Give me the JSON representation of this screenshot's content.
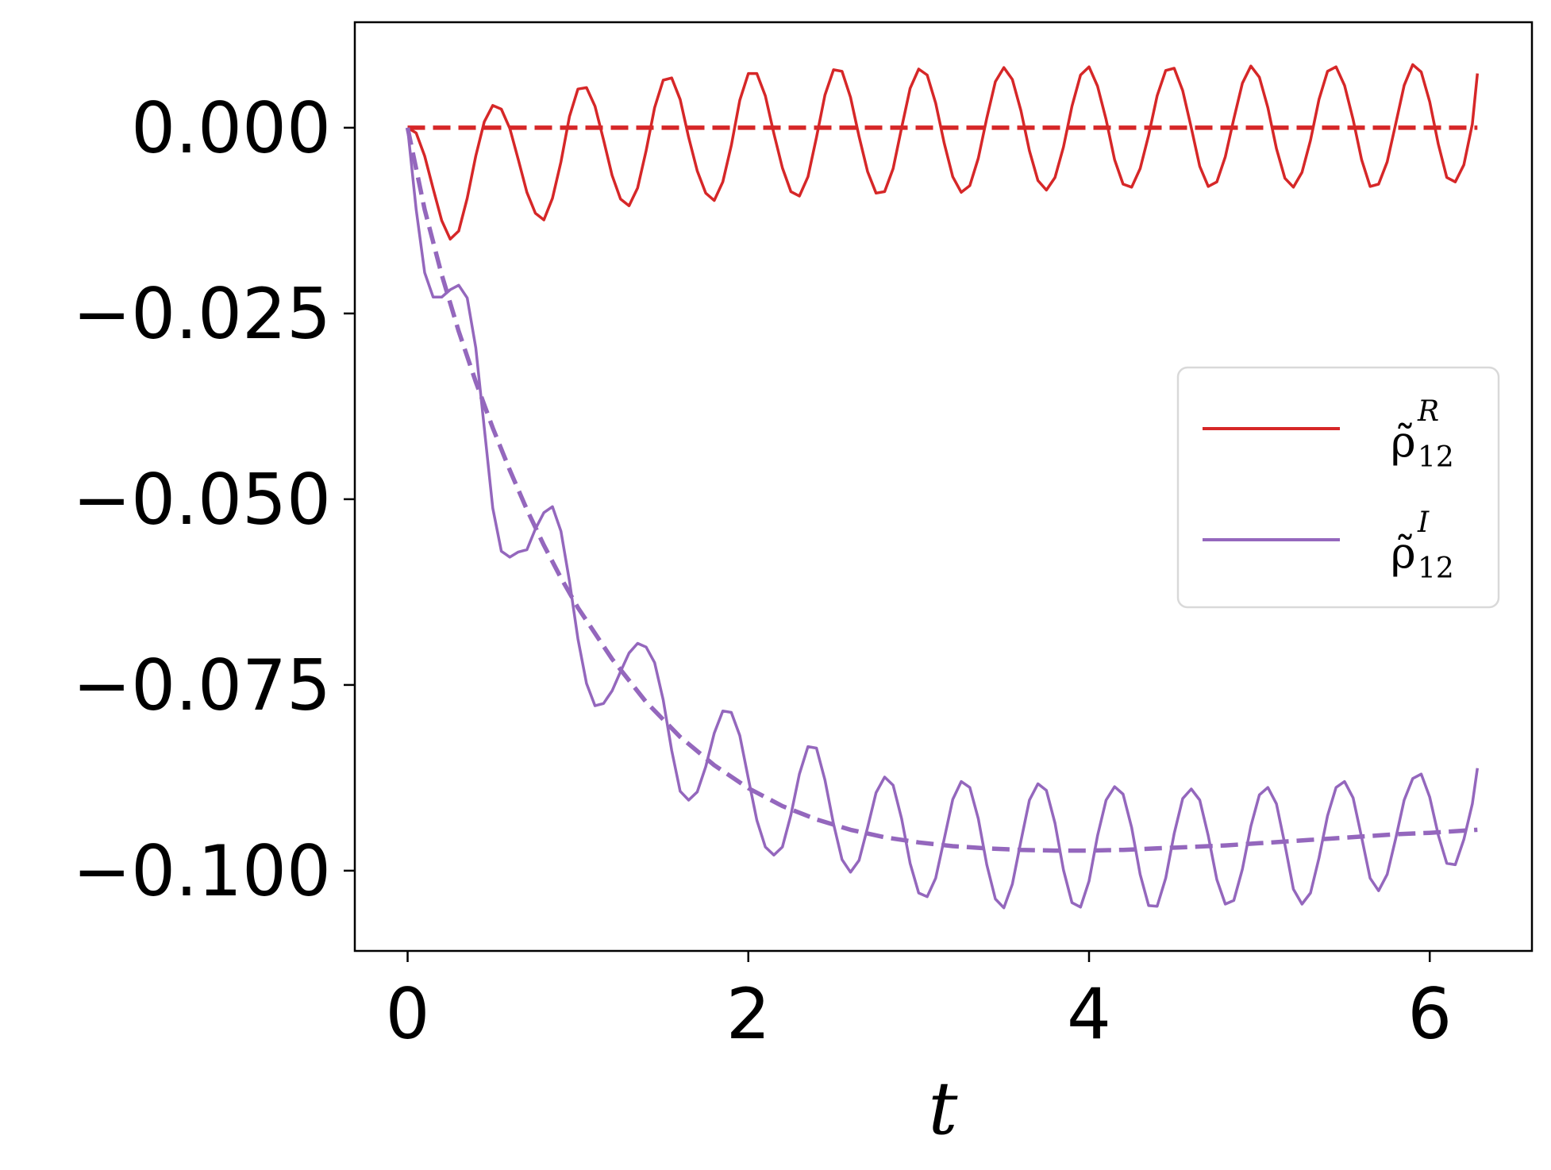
{
  "chart_data": {
    "type": "line",
    "title": "",
    "xlabel": "t",
    "ylabel": "",
    "xlim": [
      -0.31,
      6.6
    ],
    "ylim": [
      -0.1108,
      0.0142
    ],
    "xticks": [
      0,
      2,
      4,
      6
    ],
    "xtick_labels": [
      "0",
      "2",
      "4",
      "6"
    ],
    "yticks": [
      0.0,
      -0.025,
      -0.05,
      -0.075,
      -0.1
    ],
    "ytick_labels": [
      "0.000",
      "−0.025",
      "−0.050",
      "−0.075",
      "−0.100"
    ],
    "grid": false,
    "legend": {
      "placement": "center-right",
      "entries": [
        {
          "base": "ρ̃",
          "sub": "12",
          "sup": "R",
          "color": "#d62728"
        },
        {
          "base": "ρ̃",
          "sub": "12",
          "sup": "I",
          "color": "#9467bd"
        }
      ]
    },
    "series": [
      {
        "legend_index": 0,
        "style": "solid",
        "color": "#d62728",
        "x": [
          0,
          0.05,
          0.1,
          0.15,
          0.2,
          0.25,
          0.3,
          0.35,
          0.4,
          0.45,
          0.5,
          0.55,
          0.6,
          0.65,
          0.7,
          0.75,
          0.8,
          0.85,
          0.9,
          0.95,
          1.0,
          1.05,
          1.1,
          1.15,
          1.2,
          1.25,
          1.3,
          1.35,
          1.4,
          1.45,
          1.5,
          1.55,
          1.6,
          1.65,
          1.7,
          1.75,
          1.8,
          1.85,
          1.9,
          1.95,
          2.0,
          2.05,
          2.1,
          2.15,
          2.2,
          2.25,
          2.3,
          2.35,
          2.4,
          2.45,
          2.5,
          2.55,
          2.6,
          2.65,
          2.7,
          2.75,
          2.8,
          2.85,
          2.9,
          2.95,
          3.0,
          3.05,
          3.1,
          3.15,
          3.2,
          3.25,
          3.3,
          3.35,
          3.4,
          3.45,
          3.5,
          3.55,
          3.6,
          3.65,
          3.7,
          3.75,
          3.8,
          3.85,
          3.9,
          3.95,
          4.0,
          4.05,
          4.1,
          4.15,
          4.2,
          4.25,
          4.3,
          4.35,
          4.4,
          4.45,
          4.5,
          4.55,
          4.6,
          4.65,
          4.7,
          4.75,
          4.8,
          4.85,
          4.9,
          4.95,
          5.0,
          5.05,
          5.1,
          5.15,
          5.2,
          5.25,
          5.3,
          5.35,
          5.4,
          5.45,
          5.5,
          5.55,
          5.6,
          5.65,
          5.7,
          5.75,
          5.8,
          5.85,
          5.9,
          5.95,
          6.0,
          6.05,
          6.1,
          6.15,
          6.2,
          6.25,
          6.28
        ],
        "y": [
          0.0,
          -0.0007,
          -0.0038,
          -0.0082,
          -0.0125,
          -0.015,
          -0.0139,
          -0.0095,
          -0.0038,
          0.0008,
          0.003,
          0.0025,
          -0.0001,
          -0.0043,
          -0.0087,
          -0.0115,
          -0.0124,
          -0.0095,
          -0.0046,
          0.0015,
          0.0052,
          0.0054,
          0.0029,
          -0.0016,
          -0.0064,
          -0.0096,
          -0.0105,
          -0.0081,
          -0.0031,
          0.0027,
          0.0064,
          0.0067,
          0.0038,
          -0.0013,
          -0.0058,
          -0.0088,
          -0.0098,
          -0.0073,
          -0.0024,
          0.0037,
          0.0073,
          0.0073,
          0.0043,
          -0.0008,
          -0.0054,
          -0.0086,
          -0.0092,
          -0.0066,
          -0.0013,
          0.0044,
          0.0078,
          0.0076,
          0.0041,
          -0.0012,
          -0.0059,
          -0.0088,
          -0.0086,
          -0.0055,
          0.0,
          0.0053,
          0.0079,
          0.0071,
          0.0033,
          -0.0021,
          -0.0066,
          -0.0087,
          -0.0078,
          -0.0041,
          0.0013,
          0.0062,
          0.0081,
          0.0065,
          0.0023,
          -0.0031,
          -0.0071,
          -0.0084,
          -0.0067,
          -0.0026,
          0.0029,
          0.0071,
          0.0082,
          0.0056,
          0.0011,
          -0.0043,
          -0.0076,
          -0.008,
          -0.0055,
          -0.001,
          0.0043,
          0.0077,
          0.008,
          0.005,
          0.0,
          -0.0052,
          -0.0079,
          -0.0073,
          -0.0039,
          0.0012,
          0.006,
          0.0083,
          0.0068,
          0.0027,
          -0.0028,
          -0.0068,
          -0.008,
          -0.006,
          -0.0017,
          0.0038,
          0.0076,
          0.0082,
          0.0057,
          0.0011,
          -0.0043,
          -0.0079,
          -0.0076,
          -0.0046,
          0.0005,
          0.0057,
          0.0085,
          0.0075,
          0.0035,
          -0.0022,
          -0.0067,
          -0.0073,
          -0.005,
          0.0005,
          0.0073
        ]
      },
      {
        "legend_index": null,
        "style": "dashed",
        "color": "#d62728",
        "x": [
          0,
          6.28
        ],
        "y": [
          0.0,
          0.0
        ]
      },
      {
        "legend_index": 1,
        "style": "solid",
        "color": "#9467bd",
        "x": [
          0,
          0.05,
          0.1,
          0.15,
          0.2,
          0.25,
          0.3,
          0.35,
          0.4,
          0.45,
          0.5,
          0.55,
          0.6,
          0.65,
          0.7,
          0.75,
          0.8,
          0.85,
          0.9,
          0.95,
          1.0,
          1.05,
          1.1,
          1.15,
          1.2,
          1.25,
          1.3,
          1.35,
          1.4,
          1.45,
          1.5,
          1.55,
          1.6,
          1.65,
          1.7,
          1.75,
          1.8,
          1.85,
          1.9,
          1.95,
          2.0,
          2.05,
          2.1,
          2.15,
          2.2,
          2.25,
          2.3,
          2.35,
          2.4,
          2.45,
          2.5,
          2.55,
          2.6,
          2.65,
          2.7,
          2.75,
          2.8,
          2.85,
          2.9,
          2.95,
          3.0,
          3.05,
          3.1,
          3.15,
          3.2,
          3.25,
          3.3,
          3.35,
          3.4,
          3.45,
          3.5,
          3.55,
          3.6,
          3.65,
          3.7,
          3.75,
          3.8,
          3.85,
          3.9,
          3.95,
          4.0,
          4.05,
          4.1,
          4.15,
          4.2,
          4.25,
          4.3,
          4.35,
          4.4,
          4.45,
          4.5,
          4.55,
          4.6,
          4.65,
          4.7,
          4.75,
          4.8,
          4.85,
          4.9,
          4.95,
          5.0,
          5.05,
          5.1,
          5.15,
          5.2,
          5.25,
          5.3,
          5.35,
          5.4,
          5.45,
          5.5,
          5.55,
          5.6,
          5.65,
          5.7,
          5.75,
          5.8,
          5.85,
          5.9,
          5.95,
          6.0,
          6.05,
          6.1,
          6.15,
          6.2,
          6.25,
          6.28
        ],
        "y": [
          0.0,
          -0.011,
          -0.0195,
          -0.0228,
          -0.0228,
          -0.0218,
          -0.0212,
          -0.0229,
          -0.0296,
          -0.0404,
          -0.0512,
          -0.057,
          -0.0578,
          -0.0571,
          -0.0568,
          -0.054,
          -0.0518,
          -0.051,
          -0.0543,
          -0.061,
          -0.0688,
          -0.0748,
          -0.0778,
          -0.0775,
          -0.0758,
          -0.0732,
          -0.0707,
          -0.0694,
          -0.0699,
          -0.072,
          -0.077,
          -0.0838,
          -0.0893,
          -0.0905,
          -0.0894,
          -0.086,
          -0.0815,
          -0.0785,
          -0.0787,
          -0.0818,
          -0.0876,
          -0.0932,
          -0.0968,
          -0.0979,
          -0.0968,
          -0.0925,
          -0.087,
          -0.0833,
          -0.0835,
          -0.0878,
          -0.0937,
          -0.0985,
          -0.1002,
          -0.0986,
          -0.0942,
          -0.0895,
          -0.0874,
          -0.0885,
          -0.093,
          -0.099,
          -0.103,
          -0.1035,
          -0.101,
          -0.0957,
          -0.0904,
          -0.088,
          -0.0888,
          -0.093,
          -0.0992,
          -0.1038,
          -0.105,
          -0.1018,
          -0.096,
          -0.0905,
          -0.0883,
          -0.0892,
          -0.0936,
          -0.0999,
          -0.1043,
          -0.1049,
          -0.1014,
          -0.0953,
          -0.0905,
          -0.0887,
          -0.0897,
          -0.0942,
          -0.1005,
          -0.1047,
          -0.1048,
          -0.101,
          -0.095,
          -0.0903,
          -0.089,
          -0.0905,
          -0.0953,
          -0.1012,
          -0.1045,
          -0.104,
          -0.0998,
          -0.094,
          -0.0898,
          -0.0888,
          -0.091,
          -0.0965,
          -0.1025,
          -0.1045,
          -0.103,
          -0.0983,
          -0.0926,
          -0.0888,
          -0.088,
          -0.0902,
          -0.0955,
          -0.101,
          -0.1027,
          -0.1005,
          -0.0957,
          -0.0905,
          -0.0876,
          -0.087,
          -0.0901,
          -0.0952,
          -0.099,
          -0.0992,
          -0.0958,
          -0.091,
          -0.0862
        ]
      },
      {
        "legend_index": null,
        "style": "dashed",
        "color": "#9467bd",
        "x": [
          0,
          0.1,
          0.2,
          0.3,
          0.4,
          0.5,
          0.6,
          0.7,
          0.8,
          0.9,
          1.0,
          1.2,
          1.4,
          1.6,
          1.8,
          2.0,
          2.2,
          2.4,
          2.6,
          2.8,
          3.0,
          3.2,
          3.4,
          3.6,
          3.8,
          4.0,
          4.2,
          4.4,
          4.6,
          4.8,
          5.0,
          5.2,
          5.4,
          5.6,
          5.8,
          6.0,
          6.28
        ],
        "y": [
          0.0,
          -0.011,
          -0.0198,
          -0.0274,
          -0.0342,
          -0.0404,
          -0.0461,
          -0.0514,
          -0.0562,
          -0.0606,
          -0.0646,
          -0.0715,
          -0.0773,
          -0.082,
          -0.0858,
          -0.0889,
          -0.0913,
          -0.0931,
          -0.0945,
          -0.0955,
          -0.0962,
          -0.0967,
          -0.097,
          -0.0972,
          -0.0973,
          -0.0973,
          -0.0972,
          -0.097,
          -0.0968,
          -0.0966,
          -0.0963,
          -0.096,
          -0.0957,
          -0.0954,
          -0.0951,
          -0.0949,
          -0.0945
        ]
      }
    ]
  }
}
